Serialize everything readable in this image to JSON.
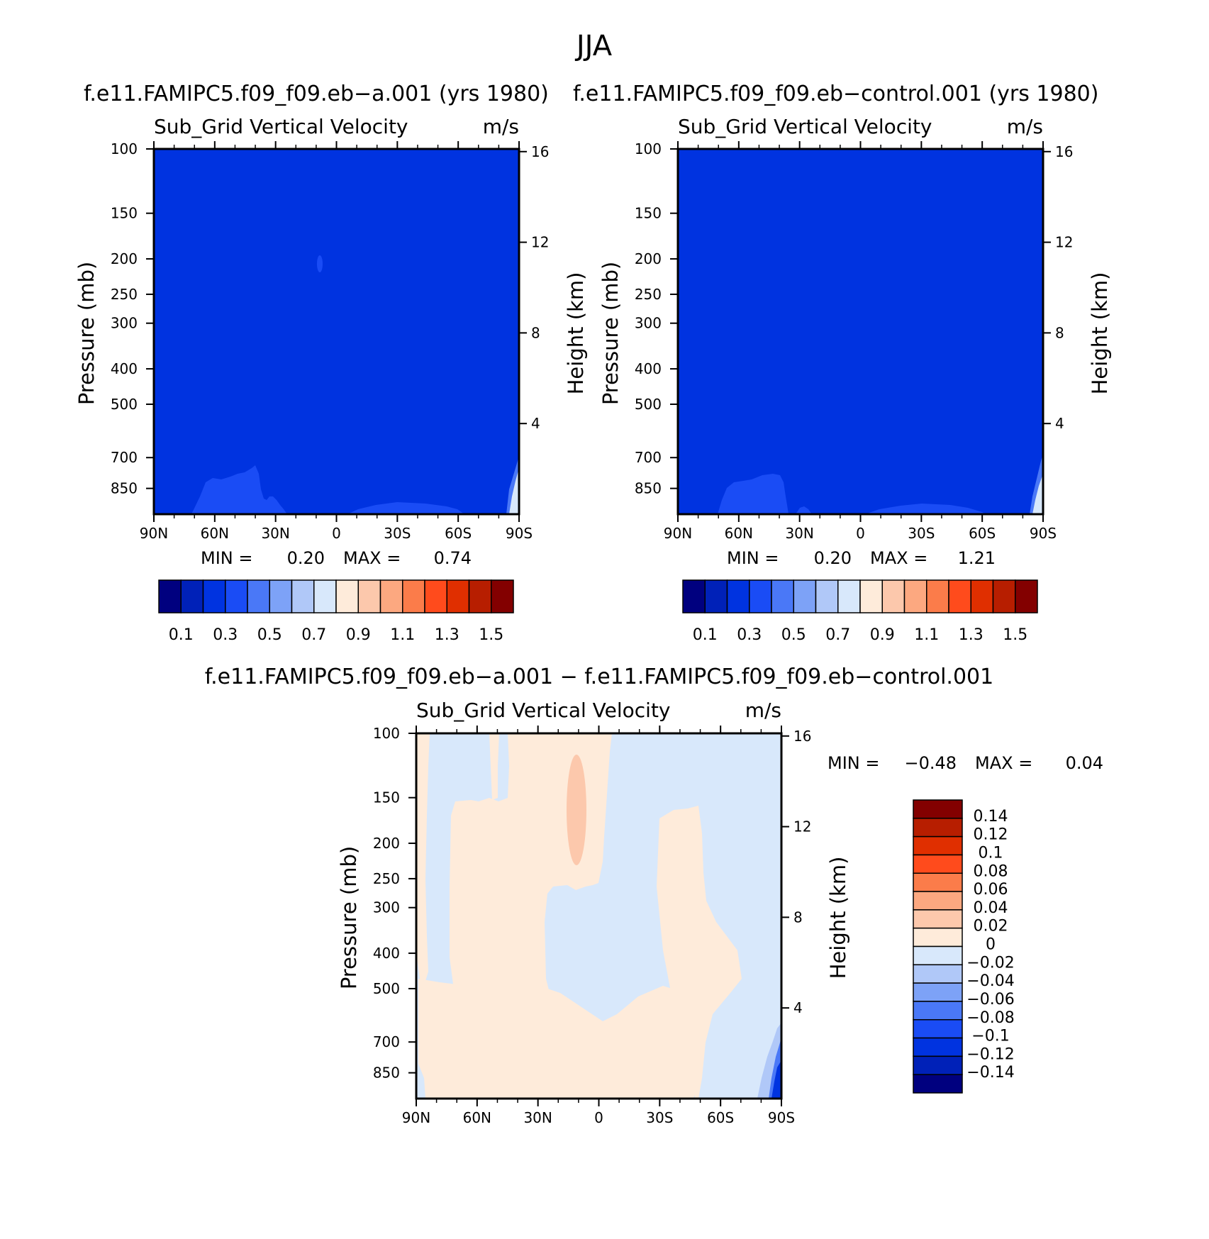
{
  "title": "JJA",
  "colors": {
    "cmap": [
      "#00007f",
      "#0021b8",
      "#0033e0",
      "#1a4cf5",
      "#4a78f7",
      "#7da2f7",
      "#b0c8f8",
      "#d8e8fb",
      "#feebda",
      "#fcc8ac",
      "#fca880",
      "#fb7c4a",
      "#ff4b1c",
      "#e02f00",
      "#b71e00",
      "#830000"
    ],
    "diff_cmap": [
      "#00007f",
      "#0021b8",
      "#0033e0",
      "#1a4cf5",
      "#4a78f7",
      "#7da2f7",
      "#b0c8f8",
      "#d8e8fb",
      "#feebda",
      "#fcc8ac",
      "#fca880",
      "#fb7c4a",
      "#ff4b1c",
      "#e02f00",
      "#b71e00",
      "#830000"
    ]
  },
  "chart_data": [
    {
      "type": "heatmap",
      "panel": "case-a",
      "title": "f.e11.FAMIPC5.f09_f09.eb−a.001 (yrs 1980)",
      "left_string": "Sub_Grid Vertical Velocity",
      "right_string": "m/s",
      "xlabel": "",
      "ylabel": "Pressure (mb)",
      "y2label": "Height (km)",
      "x_ticks": [
        "90N",
        "60N",
        "30N",
        "0",
        "30S",
        "60S",
        "90S"
      ],
      "y_ticks": [
        "100",
        "150",
        "200",
        "250",
        "300",
        "400",
        "500",
        "700",
        "850"
      ],
      "y2_ticks": [
        "16",
        "12",
        "8",
        "4"
      ],
      "y_scale": "log",
      "ylim": [
        100,
        1000
      ],
      "min_label": "MIN =",
      "min_value": "0.20",
      "max_label": "MAX =",
      "max_value": "0.74",
      "background_value": 0.25,
      "contour_levels": [
        0.1,
        0.2,
        0.3,
        0.4,
        0.5,
        0.6,
        0.7,
        0.8,
        0.9,
        1.0,
        1.1,
        1.2,
        1.3,
        1.4,
        1.5
      ],
      "colorbar_labels": [
        "0.1",
        "0.3",
        "0.5",
        "0.7",
        "0.9",
        "1.1",
        "1.3",
        "1.5"
      ]
    },
    {
      "type": "heatmap",
      "panel": "case-control",
      "title": "f.e11.FAMIPC5.f09_f09.eb−control.001 (yrs 1980)",
      "left_string": "Sub_Grid Vertical Velocity",
      "right_string": "m/s",
      "xlabel": "",
      "ylabel": "Pressure (mb)",
      "y2label": "Height (km)",
      "x_ticks": [
        "90N",
        "60N",
        "30N",
        "0",
        "30S",
        "60S",
        "90S"
      ],
      "y_ticks": [
        "100",
        "150",
        "200",
        "250",
        "300",
        "400",
        "500",
        "700",
        "850"
      ],
      "y2_ticks": [
        "16",
        "12",
        "8",
        "4"
      ],
      "y_scale": "log",
      "ylim": [
        100,
        1000
      ],
      "min_label": "MIN =",
      "min_value": "0.20",
      "max_label": "MAX =",
      "max_value": "1.21",
      "background_value": 0.25,
      "contour_levels": [
        0.1,
        0.2,
        0.3,
        0.4,
        0.5,
        0.6,
        0.7,
        0.8,
        0.9,
        1.0,
        1.1,
        1.2,
        1.3,
        1.4,
        1.5
      ],
      "colorbar_labels": [
        "0.1",
        "0.3",
        "0.5",
        "0.7",
        "0.9",
        "1.1",
        "1.3",
        "1.5"
      ]
    },
    {
      "type": "heatmap",
      "panel": "difference",
      "title": "f.e11.FAMIPC5.f09_f09.eb−a.001 − f.e11.FAMIPC5.f09_f09.eb−control.001",
      "left_string": "Sub_Grid Vertical Velocity",
      "right_string": "m/s",
      "xlabel": "",
      "ylabel": "Pressure (mb)",
      "y2label": "Height (km)",
      "x_ticks": [
        "90N",
        "60N",
        "30N",
        "0",
        "30S",
        "60S",
        "90S"
      ],
      "y_ticks": [
        "100",
        "150",
        "200",
        "250",
        "300",
        "400",
        "500",
        "700",
        "850"
      ],
      "y2_ticks": [
        "16",
        "12",
        "8",
        "4"
      ],
      "y_scale": "log",
      "ylim": [
        100,
        1000
      ],
      "min_label": "MIN =",
      "min_value": "−0.48",
      "max_label": "MAX =",
      "max_value": "0.04",
      "contour_levels": [
        -0.14,
        -0.12,
        -0.1,
        -0.08,
        -0.06,
        -0.04,
        -0.02,
        0,
        0.02,
        0.04,
        0.06,
        0.08,
        0.1,
        0.12,
        0.14
      ],
      "colorbar_labels": [
        "0.14",
        "0.12",
        "0.1",
        "0.08",
        "0.06",
        "0.04",
        "0.02",
        "0",
        "−0.02",
        "−0.04",
        "−0.06",
        "−0.08",
        "−0.1",
        "−0.12",
        "−0.14"
      ]
    }
  ]
}
